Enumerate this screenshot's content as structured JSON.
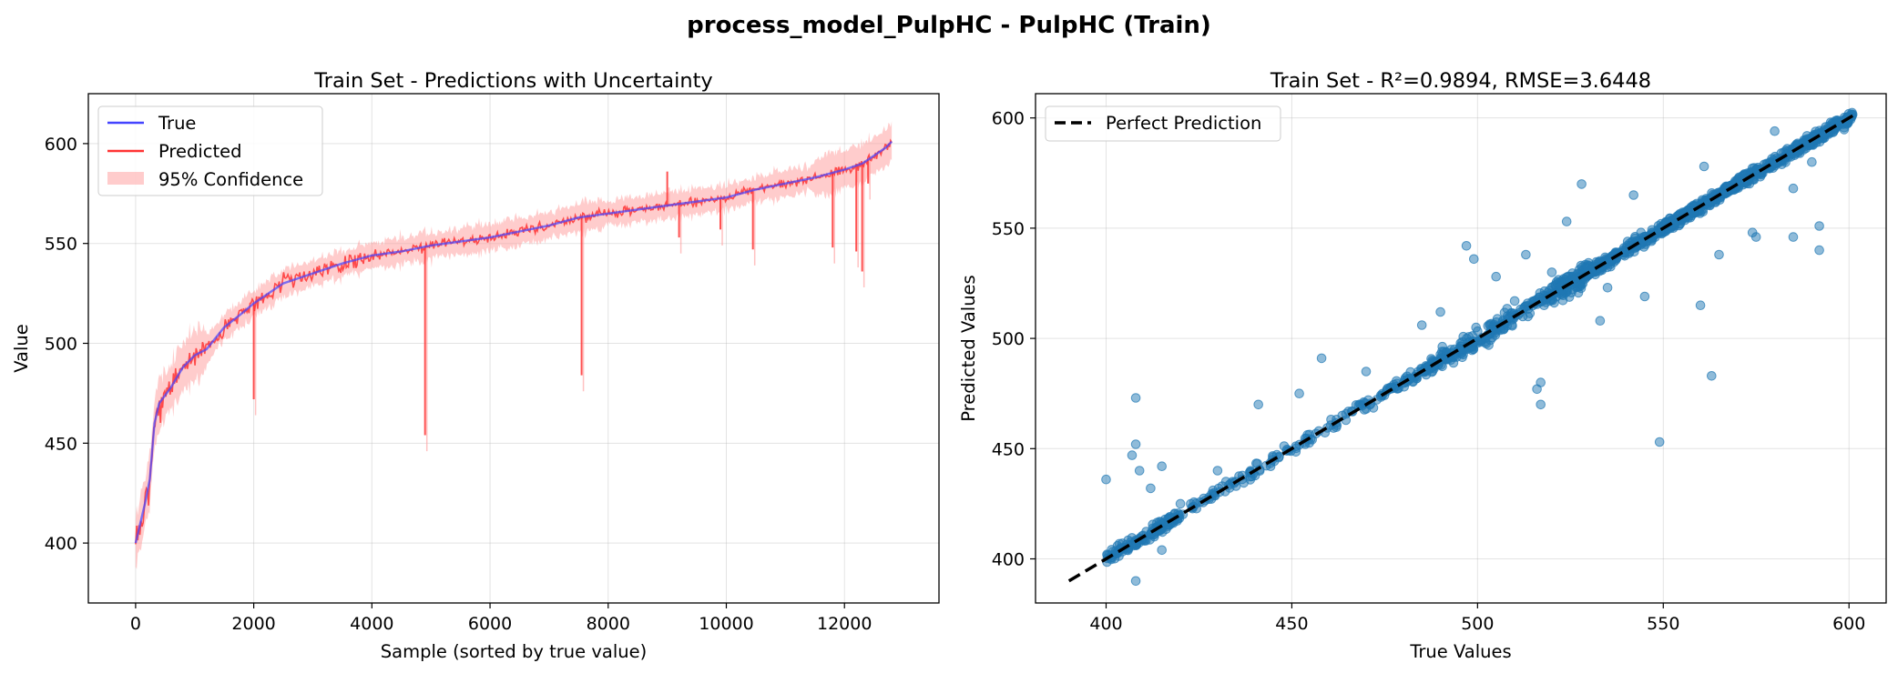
{
  "figure": {
    "title": "process_model_PulpHC - PulpHC (Train)"
  },
  "colors": {
    "true_line": "#4444ff",
    "predicted_line": "#ff3333",
    "confidence_band": "#ff9999",
    "scatter_point": "#1f77b4",
    "perfect_line": "#000000"
  },
  "chart_data": [
    {
      "type": "line",
      "title": "Train Set - Predictions with Uncertainty",
      "xlabel": "Sample (sorted by true value)",
      "ylabel": "Value",
      "xlim": [
        -800,
        13600
      ],
      "ylim": [
        370,
        625
      ],
      "xticks": [
        0,
        2000,
        4000,
        6000,
        8000,
        10000,
        12000
      ],
      "yticks": [
        400,
        450,
        500,
        550,
        600
      ],
      "grid": true,
      "legend_position": "upper left",
      "legend": [
        "True",
        "Predicted",
        "95% Confidence"
      ],
      "true_curve": {
        "name": "True",
        "x": [
          0,
          80,
          160,
          240,
          320,
          400,
          600,
          800,
          1000,
          1200,
          1500,
          1800,
          2000,
          2200,
          2500,
          3000,
          3500,
          4000,
          4500,
          5000,
          5500,
          6000,
          6500,
          7000,
          7500,
          8000,
          8500,
          9000,
          9500,
          10000,
          10500,
          11000,
          11500,
          12000,
          12300,
          12500,
          12700,
          12800
        ],
        "y": [
          400,
          410,
          420,
          432,
          460,
          470,
          478,
          488,
          494,
          497,
          508,
          515,
          520,
          524,
          530,
          535,
          540,
          544,
          546,
          549,
          551,
          553,
          556,
          559,
          563,
          565,
          567,
          569,
          571,
          573,
          577,
          580,
          583,
          587,
          590,
          594,
          598,
          601
        ]
      },
      "predicted_spikes": [
        {
          "x": 2000,
          "y": 472
        },
        {
          "x": 4900,
          "y": 454
        },
        {
          "x": 7550,
          "y": 484
        },
        {
          "x": 9000,
          "y": 586
        },
        {
          "x": 10450,
          "y": 547
        },
        {
          "x": 11800,
          "y": 548
        },
        {
          "x": 12200,
          "y": 546
        },
        {
          "x": 12300,
          "y": 536
        },
        {
          "x": 9200,
          "y": 553
        },
        {
          "x": 9900,
          "y": 557
        },
        {
          "x": 12400,
          "y": 580
        }
      ]
    },
    {
      "type": "scatter",
      "title": "Train Set - R²=0.9894, RMSE=3.6448",
      "xlabel": "True Values",
      "ylabel": "Predicted Values",
      "xlim": [
        381,
        610
      ],
      "ylim": [
        380,
        611
      ],
      "xticks": [
        400,
        450,
        500,
        550,
        600
      ],
      "yticks": [
        400,
        450,
        500,
        550,
        600
      ],
      "grid": true,
      "legend_position": "upper left",
      "legend": [
        "Perfect Prediction"
      ],
      "perfect_line": {
        "x": [
          390,
          601
        ],
        "y": [
          390,
          601
        ]
      },
      "outliers": [
        {
          "x": 400,
          "y": 436
        },
        {
          "x": 408,
          "y": 473
        },
        {
          "x": 408,
          "y": 452
        },
        {
          "x": 407,
          "y": 447
        },
        {
          "x": 409,
          "y": 440
        },
        {
          "x": 415,
          "y": 442
        },
        {
          "x": 412,
          "y": 432
        },
        {
          "x": 408,
          "y": 390
        },
        {
          "x": 441,
          "y": 470
        },
        {
          "x": 452,
          "y": 475
        },
        {
          "x": 458,
          "y": 491
        },
        {
          "x": 497,
          "y": 542
        },
        {
          "x": 499,
          "y": 536
        },
        {
          "x": 505,
          "y": 528
        },
        {
          "x": 513,
          "y": 538
        },
        {
          "x": 517,
          "y": 480
        },
        {
          "x": 516,
          "y": 477
        },
        {
          "x": 517,
          "y": 470
        },
        {
          "x": 549,
          "y": 453
        },
        {
          "x": 563,
          "y": 483
        },
        {
          "x": 585,
          "y": 546
        },
        {
          "x": 592,
          "y": 551
        },
        {
          "x": 592,
          "y": 540
        },
        {
          "x": 585,
          "y": 568
        },
        {
          "x": 590,
          "y": 580
        },
        {
          "x": 574,
          "y": 548
        },
        {
          "x": 560,
          "y": 515
        },
        {
          "x": 545,
          "y": 519
        },
        {
          "x": 535,
          "y": 523
        },
        {
          "x": 533,
          "y": 508
        },
        {
          "x": 542,
          "y": 565
        },
        {
          "x": 528,
          "y": 570
        },
        {
          "x": 520,
          "y": 530
        },
        {
          "x": 485,
          "y": 506
        },
        {
          "x": 490,
          "y": 512
        },
        {
          "x": 470,
          "y": 485
        },
        {
          "x": 510,
          "y": 517
        },
        {
          "x": 503,
          "y": 497
        },
        {
          "x": 580,
          "y": 594
        },
        {
          "x": 565,
          "y": 538
        },
        {
          "x": 544,
          "y": 548
        },
        {
          "x": 561,
          "y": 578
        },
        {
          "x": 575,
          "y": 546
        },
        {
          "x": 524,
          "y": 553
        },
        {
          "x": 430,
          "y": 440
        },
        {
          "x": 435,
          "y": 433
        },
        {
          "x": 415,
          "y": 404
        },
        {
          "x": 420,
          "y": 425
        }
      ]
    }
  ]
}
